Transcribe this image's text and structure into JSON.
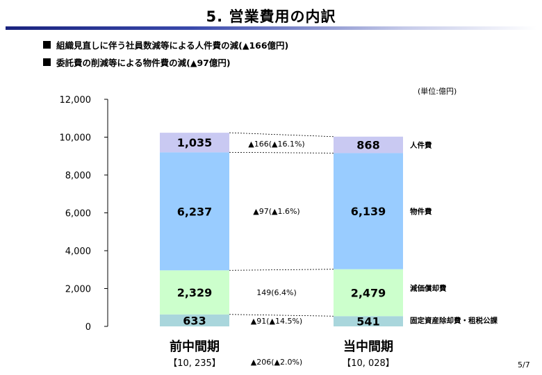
{
  "title": "5. 営業費用の内訳",
  "bullets": [
    "組織見直しに伴う社員数減等による人件費の減(▲166億円)",
    "委託費の削減等による物件費の減(▲97億円)"
  ],
  "unit_note": "(単位:億円)",
  "page_number": "5/7",
  "colors": {
    "title_rule": "#1a237e",
    "personnel": "#c9c9f2",
    "goods": "#99ccff",
    "depreciation": "#ccffcc",
    "fixed_asset": "#a9d6dc"
  },
  "chart_data": {
    "type": "bar",
    "stacked": true,
    "categories": [
      "前中間期",
      "当中間期"
    ],
    "category_totals": [
      "【10, 235】",
      "【10, 028】"
    ],
    "series": [
      {
        "name": "固定資産除却費・租税公課",
        "values": [
          633,
          541
        ],
        "labels": [
          "633",
          "541"
        ],
        "color": "#a9d6dc"
      },
      {
        "name": "減価償却費",
        "values": [
          2329,
          2479
        ],
        "labels": [
          "2,329",
          "2,479"
        ],
        "color": "#ccffcc"
      },
      {
        "name": "物件費",
        "values": [
          6237,
          6139
        ],
        "labels": [
          "6,237",
          "6,139"
        ],
        "color": "#99ccff"
      },
      {
        "name": "人件費",
        "values": [
          1035,
          868
        ],
        "labels": [
          "1,035",
          "868"
        ],
        "color": "#c9c9f2"
      }
    ],
    "changes": [
      "▲91(▲14.5%)",
      "149(6.4%)",
      "▲97(▲1.6%)",
      "▲166(▲16.1%)"
    ],
    "total_change": "▲206(▲2.0%)",
    "ylim": [
      0,
      12000
    ],
    "yticks": [
      0,
      2000,
      4000,
      6000,
      8000,
      10000,
      12000
    ],
    "ytick_labels": [
      "0",
      "2,000",
      "4,000",
      "6,000",
      "8,000",
      "10,000",
      "12,000"
    ],
    "legend": "right"
  }
}
